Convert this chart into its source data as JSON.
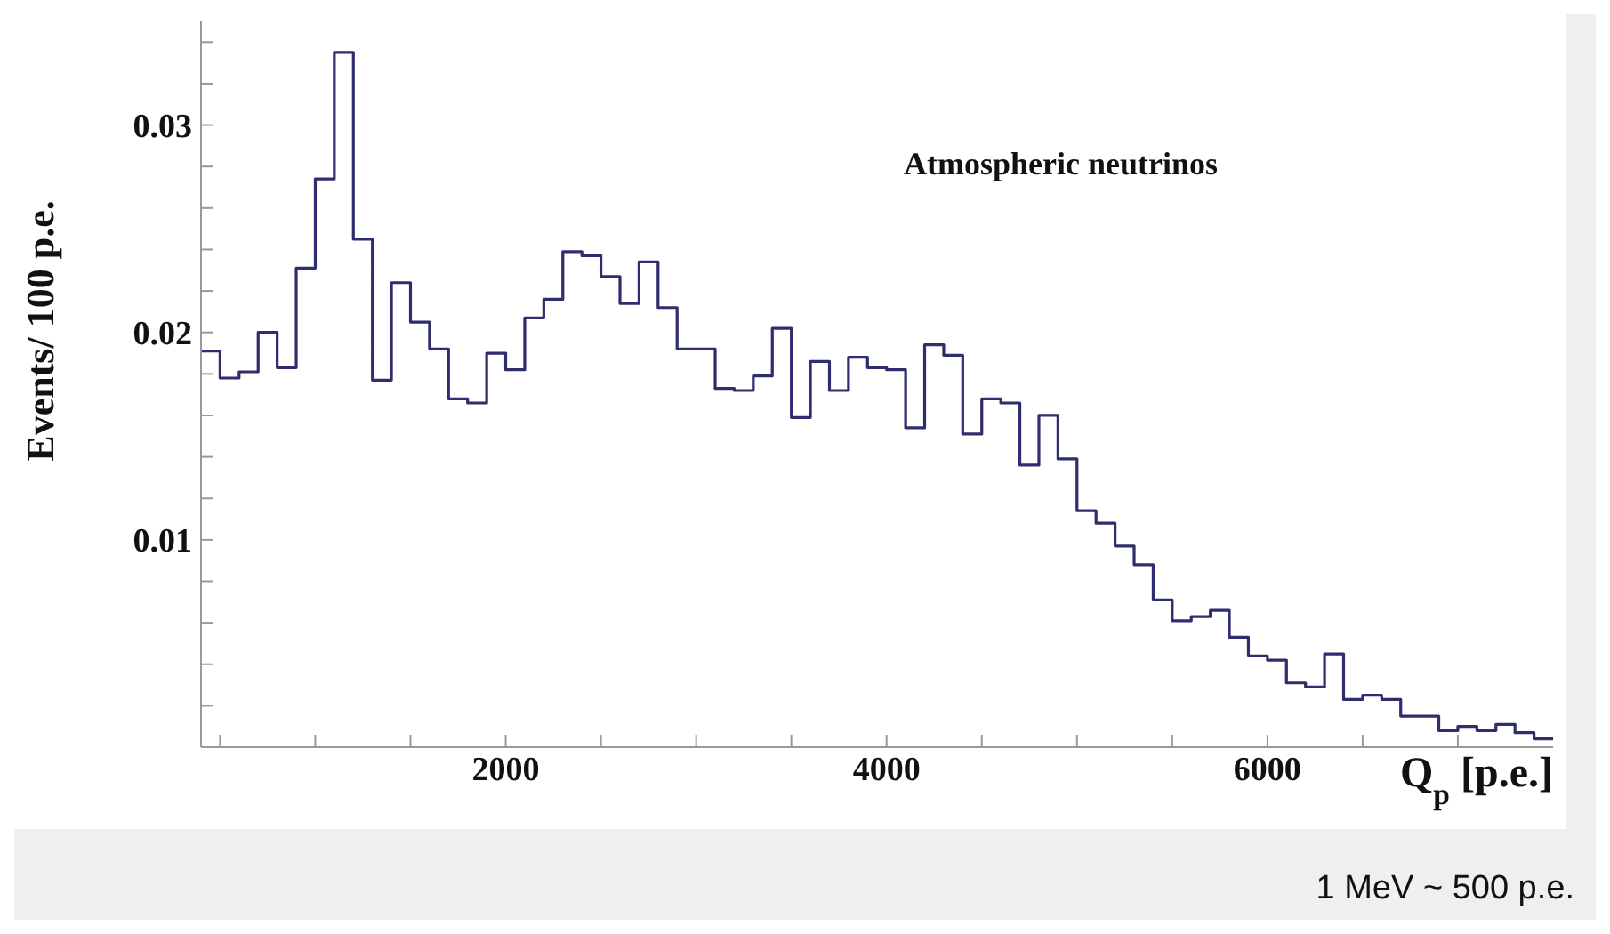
{
  "chart_data": {
    "type": "histogram",
    "xlabel": "Q$_{p}$ [p.e.]",
    "ylabel": "Events/ 100 p.e.",
    "annotations": [
      "Atmospheric neutrinos",
      "1 MeV ~ 500 p.e."
    ],
    "bins": [
      400,
      500,
      600,
      700,
      800,
      900,
      1000,
      1100,
      1200,
      1300,
      1400,
      1500,
      1600,
      1700,
      1800,
      1900,
      2000,
      2100,
      2200,
      2300,
      2400,
      2500,
      2600,
      2700,
      2800,
      2900,
      3000,
      3100,
      3200,
      3300,
      3400,
      3500,
      3600,
      3700,
      3800,
      3900,
      4000,
      4100,
      4200,
      4300,
      4400,
      4500,
      4600,
      4700,
      4800,
      4900,
      5000,
      5100,
      5200,
      5300,
      5400,
      5500,
      5600,
      5700,
      5800,
      5900,
      6000,
      6100,
      6200,
      6300,
      6400,
      6500,
      6600,
      6700,
      6800,
      6900,
      7000,
      7100,
      7200,
      7300,
      7400,
      7500
    ],
    "values": [
      0.0191,
      0.0178,
      0.0181,
      0.02,
      0.0183,
      0.0231,
      0.0274,
      0.0335,
      0.0245,
      0.0177,
      0.0224,
      0.0205,
      0.0192,
      0.0168,
      0.0166,
      0.019,
      0.0182,
      0.0207,
      0.0216,
      0.0239,
      0.0237,
      0.0227,
      0.0214,
      0.0234,
      0.0212,
      0.0192,
      0.0192,
      0.0173,
      0.0172,
      0.0179,
      0.0202,
      0.0159,
      0.0186,
      0.0172,
      0.0188,
      0.0183,
      0.0182,
      0.0154,
      0.0194,
      0.0189,
      0.0151,
      0.0168,
      0.0166,
      0.0136,
      0.016,
      0.0139,
      0.0114,
      0.0108,
      0.0097,
      0.0088,
      0.0071,
      0.0061,
      0.0063,
      0.0066,
      0.0053,
      0.0044,
      0.0042,
      0.0031,
      0.0029,
      0.0045,
      0.0023,
      0.0025,
      0.0023,
      0.0015,
      0.0015,
      0.0008,
      0.001,
      0.0008,
      0.0011,
      0.0007,
      0.0004
    ],
    "color": "#2e2e6e",
    "xlim": [
      400,
      7500
    ],
    "xticks": [
      {
        "value": 500,
        "label": null
      },
      {
        "value": 1000,
        "label": null
      },
      {
        "value": 1500,
        "label": null
      },
      2000,
      {
        "value": 2500,
        "label": null
      },
      {
        "value": 3000,
        "label": null
      },
      {
        "value": 3500,
        "label": null
      },
      4000,
      {
        "value": 4500,
        "label": null
      },
      {
        "value": 5000,
        "label": null
      },
      {
        "value": 5500,
        "label": null
      },
      6000,
      {
        "value": 6500,
        "label": null
      },
      {
        "value": 7000,
        "label": null
      }
    ],
    "ylim": [
      0,
      0.035
    ],
    "yticks": [
      {
        "value": 0.002,
        "label": null
      },
      {
        "value": 0.004,
        "label": null
      },
      {
        "value": 0.006,
        "label": null
      },
      {
        "value": 0.008,
        "label": null
      },
      0.01,
      {
        "value": 0.012,
        "label": null
      },
      {
        "value": 0.014,
        "label": null
      },
      {
        "value": 0.016,
        "label": null
      },
      {
        "value": 0.018,
        "label": null
      },
      0.02,
      {
        "value": 0.022,
        "label": null
      },
      {
        "value": 0.024,
        "label": null
      },
      {
        "value": 0.026,
        "label": null
      },
      {
        "value": 0.028,
        "label": null
      },
      0.03,
      {
        "value": 0.032,
        "label": null
      },
      {
        "value": 0.034,
        "label": null
      }
    ],
    "grid": false,
    "legend": false
  }
}
